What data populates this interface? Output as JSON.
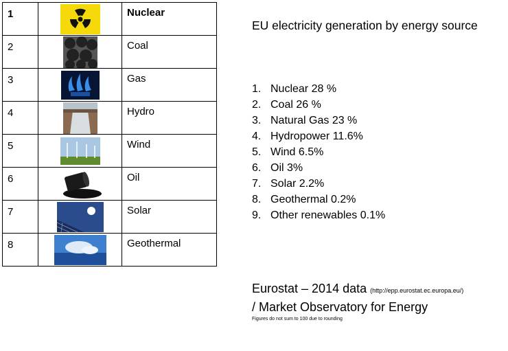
{
  "table": {
    "rows": [
      [
        "1",
        "Nuclear"
      ],
      [
        "2",
        "Coal"
      ],
      [
        "3",
        "Gas"
      ],
      [
        "4",
        "Hydro"
      ],
      [
        "5",
        "Wind"
      ],
      [
        "6",
        "Oil"
      ],
      [
        "7",
        "Solar"
      ],
      [
        "8",
        "Geothermal"
      ]
    ]
  },
  "panel": {
    "title": "EU electricity generation by energy source",
    "items": [
      {
        "marker": "1.",
        "text": "Nuclear 28 %"
      },
      {
        "marker": "2.",
        "text": "Coal 26 %"
      },
      {
        "marker": "3.",
        "text": "Natural Gas 23 %"
      },
      {
        "marker": "4.",
        "text": "Hydropower 11.6%"
      },
      {
        "marker": "5.",
        "text": "Wind 6.5%"
      },
      {
        "marker": "6.",
        "text": "Oil 3%"
      },
      {
        "marker": "7.",
        "text": "Solar 2.2%"
      },
      {
        "marker": "8.",
        "text": "Geothermal 0.2%"
      },
      {
        "marker": "9.",
        "text": "Other renewables 0.1%"
      }
    ],
    "source": "Eurostat – 2014 data",
    "source_url": "(http://epp.eurostat.ec.europa.eu/)",
    "source_line2": "/ Market Observatory for Energy",
    "note": "Figures do not sum to 100 due to rounding"
  }
}
